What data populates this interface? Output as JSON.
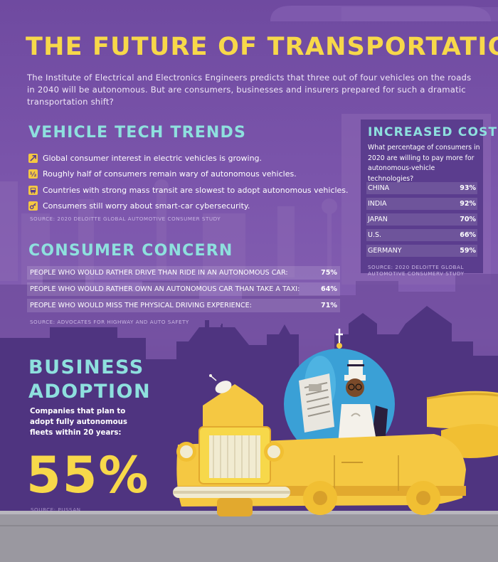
{
  "header": {
    "title": "THE FUTURE OF TRANSPORTATION",
    "intro": "The Institute of Electrical and Electronics Engineers predicts that three out of four vehicles on the roads in 2040 will be autonomous. But are consumers, businesses and insurers prepared for such a dramatic transportation shift?"
  },
  "trends": {
    "heading": "VEHICLE TECH TRENDS",
    "items": [
      {
        "text": "Global consumer interest in electric vehicles is growing.",
        "icon": "trend-up-icon"
      },
      {
        "text": "Roughly half of consumers remain wary of autonomous vehicles.",
        "icon": "half-icon"
      },
      {
        "text": "Countries with strong mass transit are slowest to adopt autonomous vehicles.",
        "icon": "bus-icon"
      },
      {
        "text": "Consumers still worry about smart-car cybersecurity.",
        "icon": "key-icon"
      }
    ],
    "source": "SOURCE: 2020 DELOITTE GLOBAL AUTOMOTIVE CONSUMER STUDY"
  },
  "concern": {
    "heading": "CONSUMER CONCERN",
    "rows": [
      {
        "label": "PEOPLE WHO WOULD RATHER DRIVE THAN RIDE IN AN AUTONOMOUS CAR:",
        "value": "75%"
      },
      {
        "label": "PEOPLE WHO WOULD RATHER OWN AN AUTONOMOUS CAR THAN TAKE A TAXI:",
        "value": "64%"
      },
      {
        "label": "PEOPLE WHO WOULD MISS THE PHYSICAL DRIVING EXPERIENCE:",
        "value": "71%"
      }
    ],
    "source": "SOURCE: ADVOCATES FOR HIGHWAY AND AUTO SAFETY"
  },
  "cost": {
    "heading": "INCREASED COST",
    "question": "What percentage of consumers in 2020 are willing to pay more for autonomous-vehicle technologies?",
    "rows": [
      {
        "country": "CHINA",
        "value": "93%"
      },
      {
        "country": "INDIA",
        "value": "92%"
      },
      {
        "country": "JAPAN",
        "value": "70%"
      },
      {
        "country": "U.S.",
        "value": "66%"
      },
      {
        "country": "GERMANY",
        "value": "59%"
      }
    ],
    "source_line1": "SOURCE: 2020 DELOITTE GLOBAL",
    "source_line2": "AUTOMOTIVE CONSUMERV STUDY"
  },
  "business": {
    "heading_line1": "BUSINESS",
    "heading_line2": "ADOPTION",
    "description": "Companies that plan to adopt fully autonomous fleets within 20 years:",
    "value": "55%",
    "source": "SOURCE: PUSSAN"
  },
  "colors": {
    "background": "#7c56ac",
    "title": "#f7d84a",
    "heading": "#8ee0de",
    "car": "#f5c842",
    "road": "#9a98a0"
  }
}
